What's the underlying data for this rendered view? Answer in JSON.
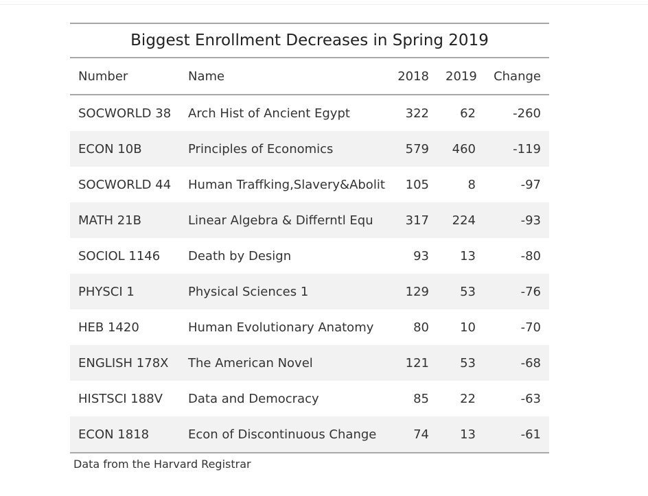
{
  "chart_data": {
    "type": "table",
    "title": "Biggest Enrollment Decreases in Spring 2019",
    "columns": [
      "Number",
      "Name",
      "2018",
      "2019",
      "Change"
    ],
    "rows": [
      [
        "SOCWORLD 38",
        "Arch Hist of Ancient Egypt",
        "322",
        "62",
        "-260"
      ],
      [
        "ECON 10B",
        "Principles of Economics",
        "579",
        "460",
        "-119"
      ],
      [
        "SOCWORLD 44",
        "Human Traffking,Slavery&Abolit",
        "105",
        "8",
        "-97"
      ],
      [
        "MATH 21B",
        "Linear Algebra & Differntl Equ",
        "317",
        "224",
        "-93"
      ],
      [
        "SOCIOL 1146",
        "Death by Design",
        "93",
        "13",
        "-80"
      ],
      [
        "PHYSCI 1",
        "Physical Sciences 1",
        "129",
        "53",
        "-76"
      ],
      [
        "HEB 1420",
        "Human Evolutionary Anatomy",
        "80",
        "10",
        "-70"
      ],
      [
        "ENGLISH 178X",
        "The American Novel",
        "121",
        "53",
        "-68"
      ],
      [
        "HISTSCI 188V",
        "Data and Democracy",
        "85",
        "22",
        "-63"
      ],
      [
        "ECON 1818",
        "Econ of Discontinuous Change",
        "74",
        "13",
        "-61"
      ]
    ],
    "source_note": "Data from the Harvard Registrar",
    "stripe_color": "#f2f2f2",
    "rule_color": "#a8a8a8"
  }
}
